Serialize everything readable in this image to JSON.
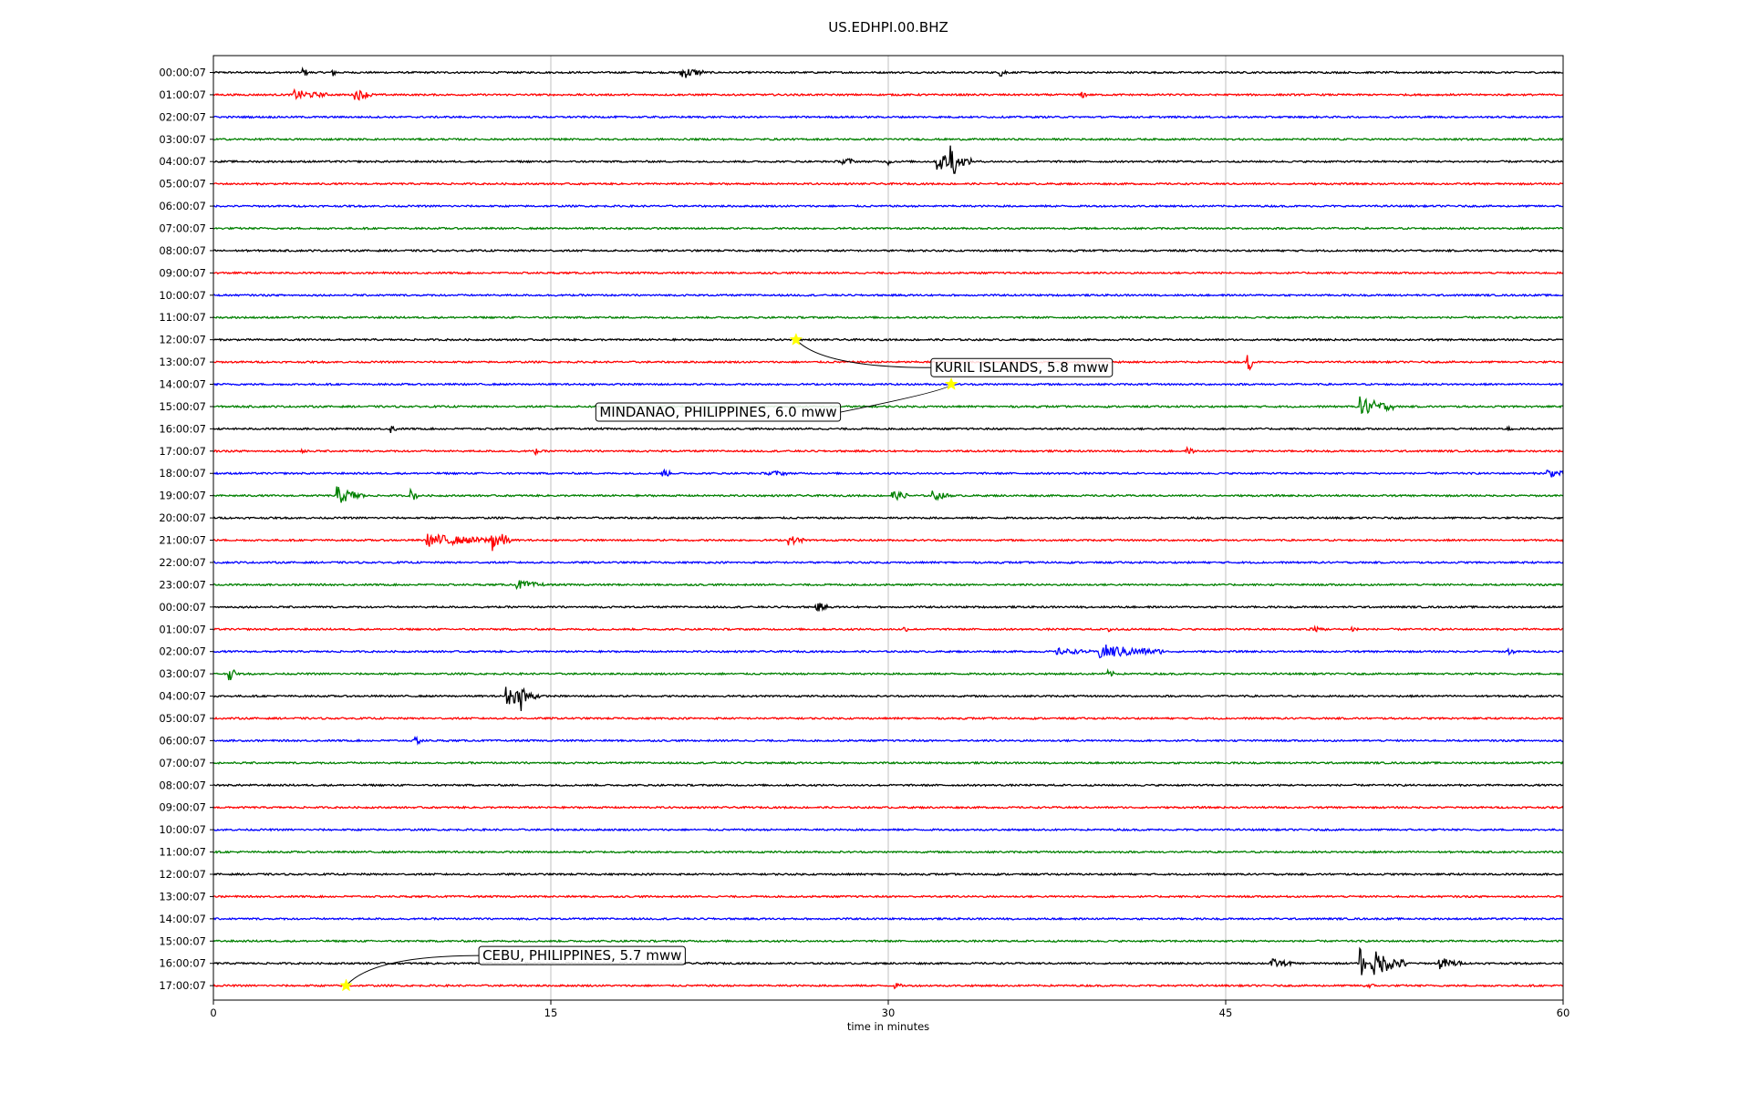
{
  "chart_data": {
    "type": "line",
    "title": "US.EDHPI.00.BHZ",
    "xlabel": "time in minutes",
    "ylabel": "",
    "xlim": [
      0,
      60
    ],
    "xticks": [
      0,
      15,
      30,
      45,
      60
    ],
    "xtick_labels": [
      "0",
      "15",
      "30",
      "45",
      "60"
    ],
    "vertical_gridlines": [
      15,
      30,
      45
    ],
    "row_labels": [
      "00:00:07",
      "01:00:07",
      "02:00:07",
      "03:00:07",
      "04:00:07",
      "05:00:07",
      "06:00:07",
      "07:00:07",
      "08:00:07",
      "09:00:07",
      "10:00:07",
      "11:00:07",
      "12:00:07",
      "13:00:07",
      "14:00:07",
      "15:00:07",
      "16:00:07",
      "17:00:07",
      "18:00:07",
      "19:00:07",
      "20:00:07",
      "21:00:07",
      "22:00:07",
      "23:00:07",
      "00:00:07",
      "01:00:07",
      "02:00:07",
      "03:00:07",
      "04:00:07",
      "05:00:07",
      "06:00:07",
      "07:00:07",
      "08:00:07",
      "09:00:07",
      "10:00:07",
      "11:00:07",
      "12:00:07",
      "13:00:07",
      "14:00:07",
      "15:00:07",
      "16:00:07",
      "17:00:07"
    ],
    "row_colors": [
      "#000000",
      "#ff0000",
      "#0000ff",
      "#008000"
    ],
    "last_row_end_minute": 60,
    "bursts": [
      {
        "row": 0,
        "minute": 4.0,
        "amp": 0.6,
        "dur": 0.2
      },
      {
        "row": 0,
        "minute": 5.3,
        "amp": 0.6,
        "dur": 0.2
      },
      {
        "row": 0,
        "minute": 20.8,
        "amp": 0.9,
        "dur": 1.0
      },
      {
        "row": 0,
        "minute": 35.0,
        "amp": 0.6,
        "dur": 0.3
      },
      {
        "row": 1,
        "minute": 3.6,
        "amp": 0.6,
        "dur": 1.5
      },
      {
        "row": 1,
        "minute": 6.3,
        "amp": 0.8,
        "dur": 0.8
      },
      {
        "row": 1,
        "minute": 38.6,
        "amp": 0.5,
        "dur": 0.2
      },
      {
        "row": 4,
        "minute": 28.0,
        "amp": 0.7,
        "dur": 0.5
      },
      {
        "row": 4,
        "minute": 30.0,
        "amp": 0.4,
        "dur": 0.2
      },
      {
        "row": 4,
        "minute": 32.2,
        "amp": 1.3,
        "dur": 1.5
      },
      {
        "row": 4,
        "minute": 32.8,
        "amp": 2.5,
        "dur": 0.2
      },
      {
        "row": 13,
        "minute": 46.0,
        "amp": 1.4,
        "dur": 0.2
      },
      {
        "row": 15,
        "minute": 51.0,
        "amp": 1.3,
        "dur": 1.5
      },
      {
        "row": 16,
        "minute": 7.9,
        "amp": 0.5,
        "dur": 0.3
      },
      {
        "row": 16,
        "minute": 57.5,
        "amp": 0.3,
        "dur": 0.3
      },
      {
        "row": 17,
        "minute": 3.9,
        "amp": 0.5,
        "dur": 0.3
      },
      {
        "row": 17,
        "minute": 14.3,
        "amp": 0.4,
        "dur": 0.3
      },
      {
        "row": 17,
        "minute": 43.3,
        "amp": 0.4,
        "dur": 0.3
      },
      {
        "row": 18,
        "minute": 20.0,
        "amp": 0.6,
        "dur": 0.3
      },
      {
        "row": 18,
        "minute": 24.7,
        "amp": 0.4,
        "dur": 0.8
      },
      {
        "row": 18,
        "minute": 59.3,
        "amp": 0.6,
        "dur": 0.8
      },
      {
        "row": 19,
        "minute": 5.5,
        "amp": 1.2,
        "dur": 1.2
      },
      {
        "row": 19,
        "minute": 8.8,
        "amp": 0.8,
        "dur": 0.3
      },
      {
        "row": 19,
        "minute": 30.2,
        "amp": 0.6,
        "dur": 0.8
      },
      {
        "row": 19,
        "minute": 32.0,
        "amp": 0.6,
        "dur": 0.8
      },
      {
        "row": 21,
        "minute": 9.5,
        "amp": 0.8,
        "dur": 3.5
      },
      {
        "row": 21,
        "minute": 12.4,
        "amp": 1.3,
        "dur": 0.8
      },
      {
        "row": 21,
        "minute": 25.6,
        "amp": 0.6,
        "dur": 0.7
      },
      {
        "row": 23,
        "minute": 13.5,
        "amp": 0.6,
        "dur": 1.2
      },
      {
        "row": 24,
        "minute": 26.8,
        "amp": 0.7,
        "dur": 0.5
      },
      {
        "row": 25,
        "minute": 30.7,
        "amp": 0.3,
        "dur": 0.2
      },
      {
        "row": 25,
        "minute": 39.8,
        "amp": 0.3,
        "dur": 0.5
      },
      {
        "row": 25,
        "minute": 48.7,
        "amp": 0.4,
        "dur": 0.8
      },
      {
        "row": 25,
        "minute": 50.6,
        "amp": 0.4,
        "dur": 0.3
      },
      {
        "row": 26,
        "minute": 37.5,
        "amp": 0.4,
        "dur": 1.5
      },
      {
        "row": 26,
        "minute": 39.4,
        "amp": 1.0,
        "dur": 2.8
      },
      {
        "row": 26,
        "minute": 57.5,
        "amp": 0.4,
        "dur": 0.4
      },
      {
        "row": 27,
        "minute": 0.7,
        "amp": 1.0,
        "dur": 0.3
      },
      {
        "row": 27,
        "minute": 39.8,
        "amp": 0.4,
        "dur": 0.3
      },
      {
        "row": 28,
        "minute": 13.0,
        "amp": 1.3,
        "dur": 1.5
      },
      {
        "row": 28,
        "minute": 13.7,
        "amp": 1.5,
        "dur": 0.2
      },
      {
        "row": 30,
        "minute": 9.0,
        "amp": 0.5,
        "dur": 0.4
      },
      {
        "row": 40,
        "minute": 47.0,
        "amp": 0.6,
        "dur": 1.0
      },
      {
        "row": 40,
        "minute": 51.5,
        "amp": 1.9,
        "dur": 1.5
      },
      {
        "row": 40,
        "minute": 51.0,
        "amp": 2.1,
        "dur": 0.2
      },
      {
        "row": 40,
        "minute": 54.5,
        "amp": 0.8,
        "dur": 1.0
      },
      {
        "row": 41,
        "minute": 30.3,
        "amp": 0.3,
        "dur": 0.3
      },
      {
        "row": 41,
        "minute": 51.2,
        "amp": 0.3,
        "dur": 0.5
      }
    ],
    "events": [
      {
        "label": "KURIL ISLANDS, 5.8 mww",
        "row": 12,
        "minute": 25.9,
        "label_row": 13.25,
        "label_minute": 31.9
      },
      {
        "label": "MINDANAO, PHILIPPINES, 6.0 mww",
        "row": 14,
        "minute": 32.8,
        "label_row": 15.25,
        "label_minute": 17.0
      },
      {
        "label": "CEBU, PHILIPPINES, 5.7 mww",
        "row": 41,
        "minute": 5.9,
        "label_row": 39.65,
        "label_minute": 11.8
      }
    ],
    "event_marker_color": "#ffff00",
    "grid": "vertical"
  }
}
